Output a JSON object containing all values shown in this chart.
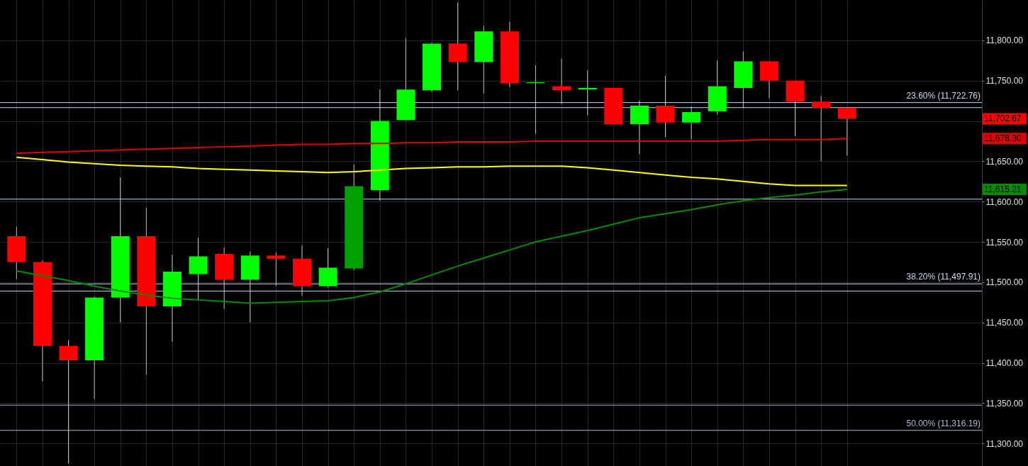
{
  "chart_data": {
    "type": "candlestick",
    "categories": [
      null,
      null,
      null,
      null,
      null,
      null,
      null,
      null,
      null,
      null,
      null,
      null,
      null,
      null,
      null,
      null,
      null,
      null,
      null,
      null,
      null,
      null,
      null,
      null,
      null,
      null,
      null,
      null,
      null,
      null,
      null,
      null,
      null
    ],
    "ohlc": [
      [
        11557,
        11569,
        11504,
        11525
      ],
      [
        11525,
        11527,
        11377,
        11421
      ],
      [
        11421,
        11428,
        11275,
        11403
      ],
      [
        11403,
        11482,
        11355,
        11481
      ],
      [
        11481,
        11630,
        11450,
        11557
      ],
      [
        11557,
        11592,
        11385,
        11470
      ],
      [
        11470,
        11534,
        11426,
        11513
      ],
      [
        11510,
        11555,
        11478,
        11532
      ],
      [
        11535,
        11543,
        11467,
        11503
      ],
      [
        11503,
        11538,
        11450,
        11533
      ],
      [
        11533,
        11537,
        11495,
        11529
      ],
      [
        11529,
        11546,
        11483,
        11495
      ],
      [
        11495,
        11542,
        11493,
        11518
      ],
      [
        11517,
        11646,
        11515,
        11619
      ],
      [
        11614,
        11739,
        11601,
        11700
      ],
      [
        11701,
        11803,
        11700,
        11739
      ],
      [
        11738,
        11797,
        11736,
        11796
      ],
      [
        11796,
        11847,
        11738,
        11773
      ],
      [
        11773,
        11818,
        11734,
        11811
      ],
      [
        11811,
        11823,
        11742,
        11747
      ],
      [
        11747,
        11769,
        11684,
        11748
      ],
      [
        11743,
        11777,
        11721,
        11738
      ],
      [
        11739,
        11763,
        11707,
        11741
      ],
      [
        11741,
        11741,
        11696,
        11696
      ],
      [
        11696,
        11725,
        11659,
        11719
      ],
      [
        11719,
        11756,
        11680,
        11698
      ],
      [
        11698,
        11718,
        11677,
        11711
      ],
      [
        11712,
        11775,
        11708,
        11743
      ],
      [
        11741,
        11786,
        11716,
        11774
      ],
      [
        11774,
        11774,
        11728,
        11750
      ],
      [
        11750,
        11750,
        11681,
        11724
      ],
      [
        11724,
        11731,
        11650,
        11716
      ],
      [
        11716,
        11716,
        11657,
        11702.67
      ]
    ],
    "colors": [
      "#ff0000",
      "#ff0000",
      "#ff0000",
      "#00ff00",
      "#00ff00",
      "#ff0000",
      "#00ff00",
      "#00ff00",
      "#ff0000",
      "#00ff00",
      "#ff0000",
      "#ff0000",
      "#00ff00",
      "#00a000",
      "#00ff00",
      "#00ff00",
      "#00ff00",
      "#ff0000",
      "#00ff00",
      "#ff0000",
      "#00ff00",
      "#ff0000",
      "#00ff00",
      "#ff0000",
      "#00ff00",
      "#ff0000",
      "#00ff00",
      "#00ff00",
      "#00ff00",
      "#ff0000",
      "#ff0000",
      "#ff0000",
      "#ff0000"
    ],
    "series": [
      {
        "type": "line",
        "color": "#e00000",
        "values": [
          11660,
          11661,
          11662,
          11663,
          11664,
          11665,
          11666,
          11667,
          11668,
          11669,
          11670,
          11671,
          11671,
          11672,
          11672,
          11673,
          11673,
          11674,
          11674,
          11674,
          11675,
          11675,
          11675,
          11675,
          11675,
          11675,
          11675,
          11675,
          11676,
          11677,
          11677,
          11677,
          11678.3
        ]
      },
      {
        "type": "line",
        "color": "#ffff00",
        "values": [
          11655,
          11652,
          11649,
          11647,
          11645,
          11644,
          11643,
          11641,
          11640,
          11639,
          11638,
          11637,
          11636,
          11637,
          11639,
          11641,
          11642,
          11643,
          11643,
          11644,
          11644,
          11644,
          11642,
          11639,
          11636,
          11633,
          11630,
          11628,
          11625,
          11622,
          11620,
          11620,
          11620
        ]
      },
      {
        "type": "line",
        "color": "#008c00",
        "values": [
          11514,
          11508,
          11502,
          11495,
          11489,
          11484,
          11480,
          11478,
          11476,
          11474,
          11475,
          11476,
          11477,
          11481,
          11488,
          11498,
          11509,
          11520,
          11530,
          11540,
          11550,
          11557,
          11564,
          11572,
          11580,
          11585,
          11590,
          11596,
          11601,
          11605,
          11608,
          11612,
          11615.21
        ]
      }
    ],
    "ylim": [
      11272,
      11850
    ],
    "yticks": [
      {
        "value": 11300,
        "label": "11,300.00"
      },
      {
        "value": 11350,
        "label": "11,350.00"
      },
      {
        "value": 11400,
        "label": "11,400.00"
      },
      {
        "value": 11450,
        "label": "11,450.00"
      },
      {
        "value": 11500,
        "label": "11,500.00"
      },
      {
        "value": 11550,
        "label": "11,550.00"
      },
      {
        "value": 11600,
        "label": "11,600.00"
      },
      {
        "value": 11650,
        "label": "11,650.00"
      },
      {
        "value": 11700,
        "label": null
      },
      {
        "value": 11750,
        "label": "11,750.00"
      },
      {
        "value": 11800,
        "label": "11,800.00"
      }
    ],
    "grid": true,
    "ref_lines": [
      {
        "axis": "y",
        "value": 11722.76,
        "label": "23.60% (11,722.76)",
        "color": "#c8d8f0"
      },
      {
        "axis": "y",
        "value": 11716.5,
        "color": "#c8d8f0"
      },
      {
        "axis": "y",
        "value": 11603,
        "color": "#c8d8f0"
      },
      {
        "axis": "y",
        "value": 11497.91,
        "label": "38.20% (11,497.91)",
        "color": "#c8d8f0"
      },
      {
        "axis": "y",
        "value": 11489,
        "color": "#c8d8f0"
      },
      {
        "axis": "y",
        "value": 11347.5,
        "color": "#a8b8d0"
      },
      {
        "axis": "y",
        "value": 11316.19,
        "label": "50.00% (11,316.19)",
        "color": "#a8b8d0"
      }
    ],
    "annotations": [
      "11,702.67",
      "11,678.30",
      "11,615.21"
    ]
  }
}
